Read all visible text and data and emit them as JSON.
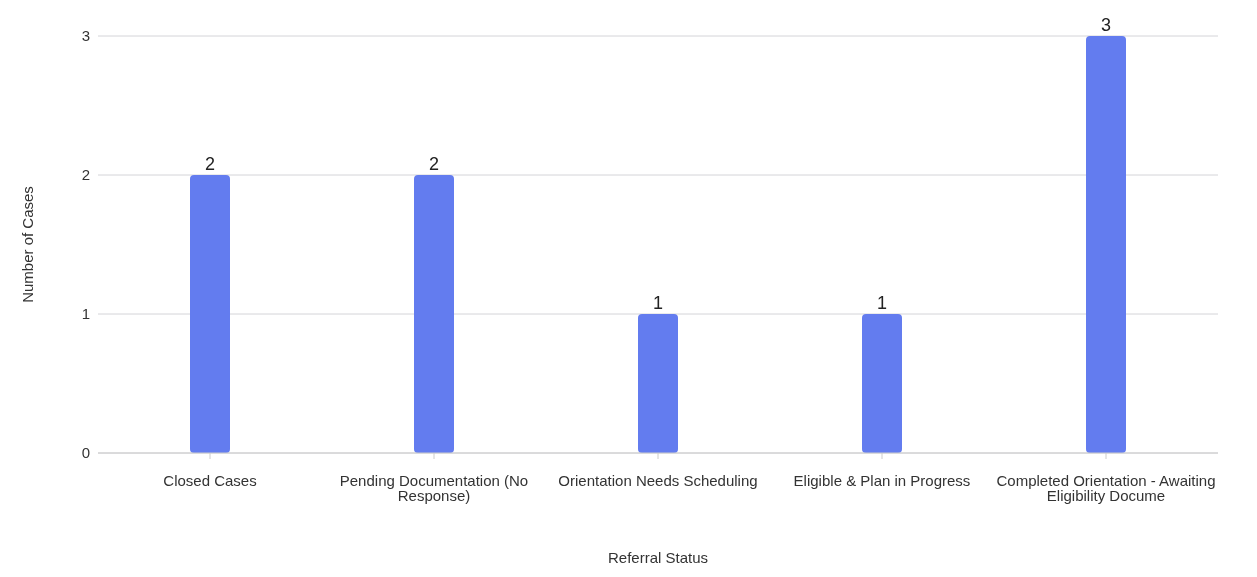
{
  "chart_data": {
    "type": "bar",
    "xlabel": "Referral Status",
    "ylabel": "Number of Cases",
    "categories": [
      "Closed Cases",
      "Pending Documentation (No Response)",
      "Orientation Needs Scheduling",
      "Eligible & Plan in Progress",
      "Completed Orientation - Awaiting Eligibility Docume"
    ],
    "values": [
      2,
      2,
      1,
      1,
      3
    ],
    "color": "#637cef",
    "ylim": [
      0,
      3
    ],
    "yticks": [
      0,
      1,
      2,
      3
    ],
    "grid": "y",
    "data_labels": true
  }
}
